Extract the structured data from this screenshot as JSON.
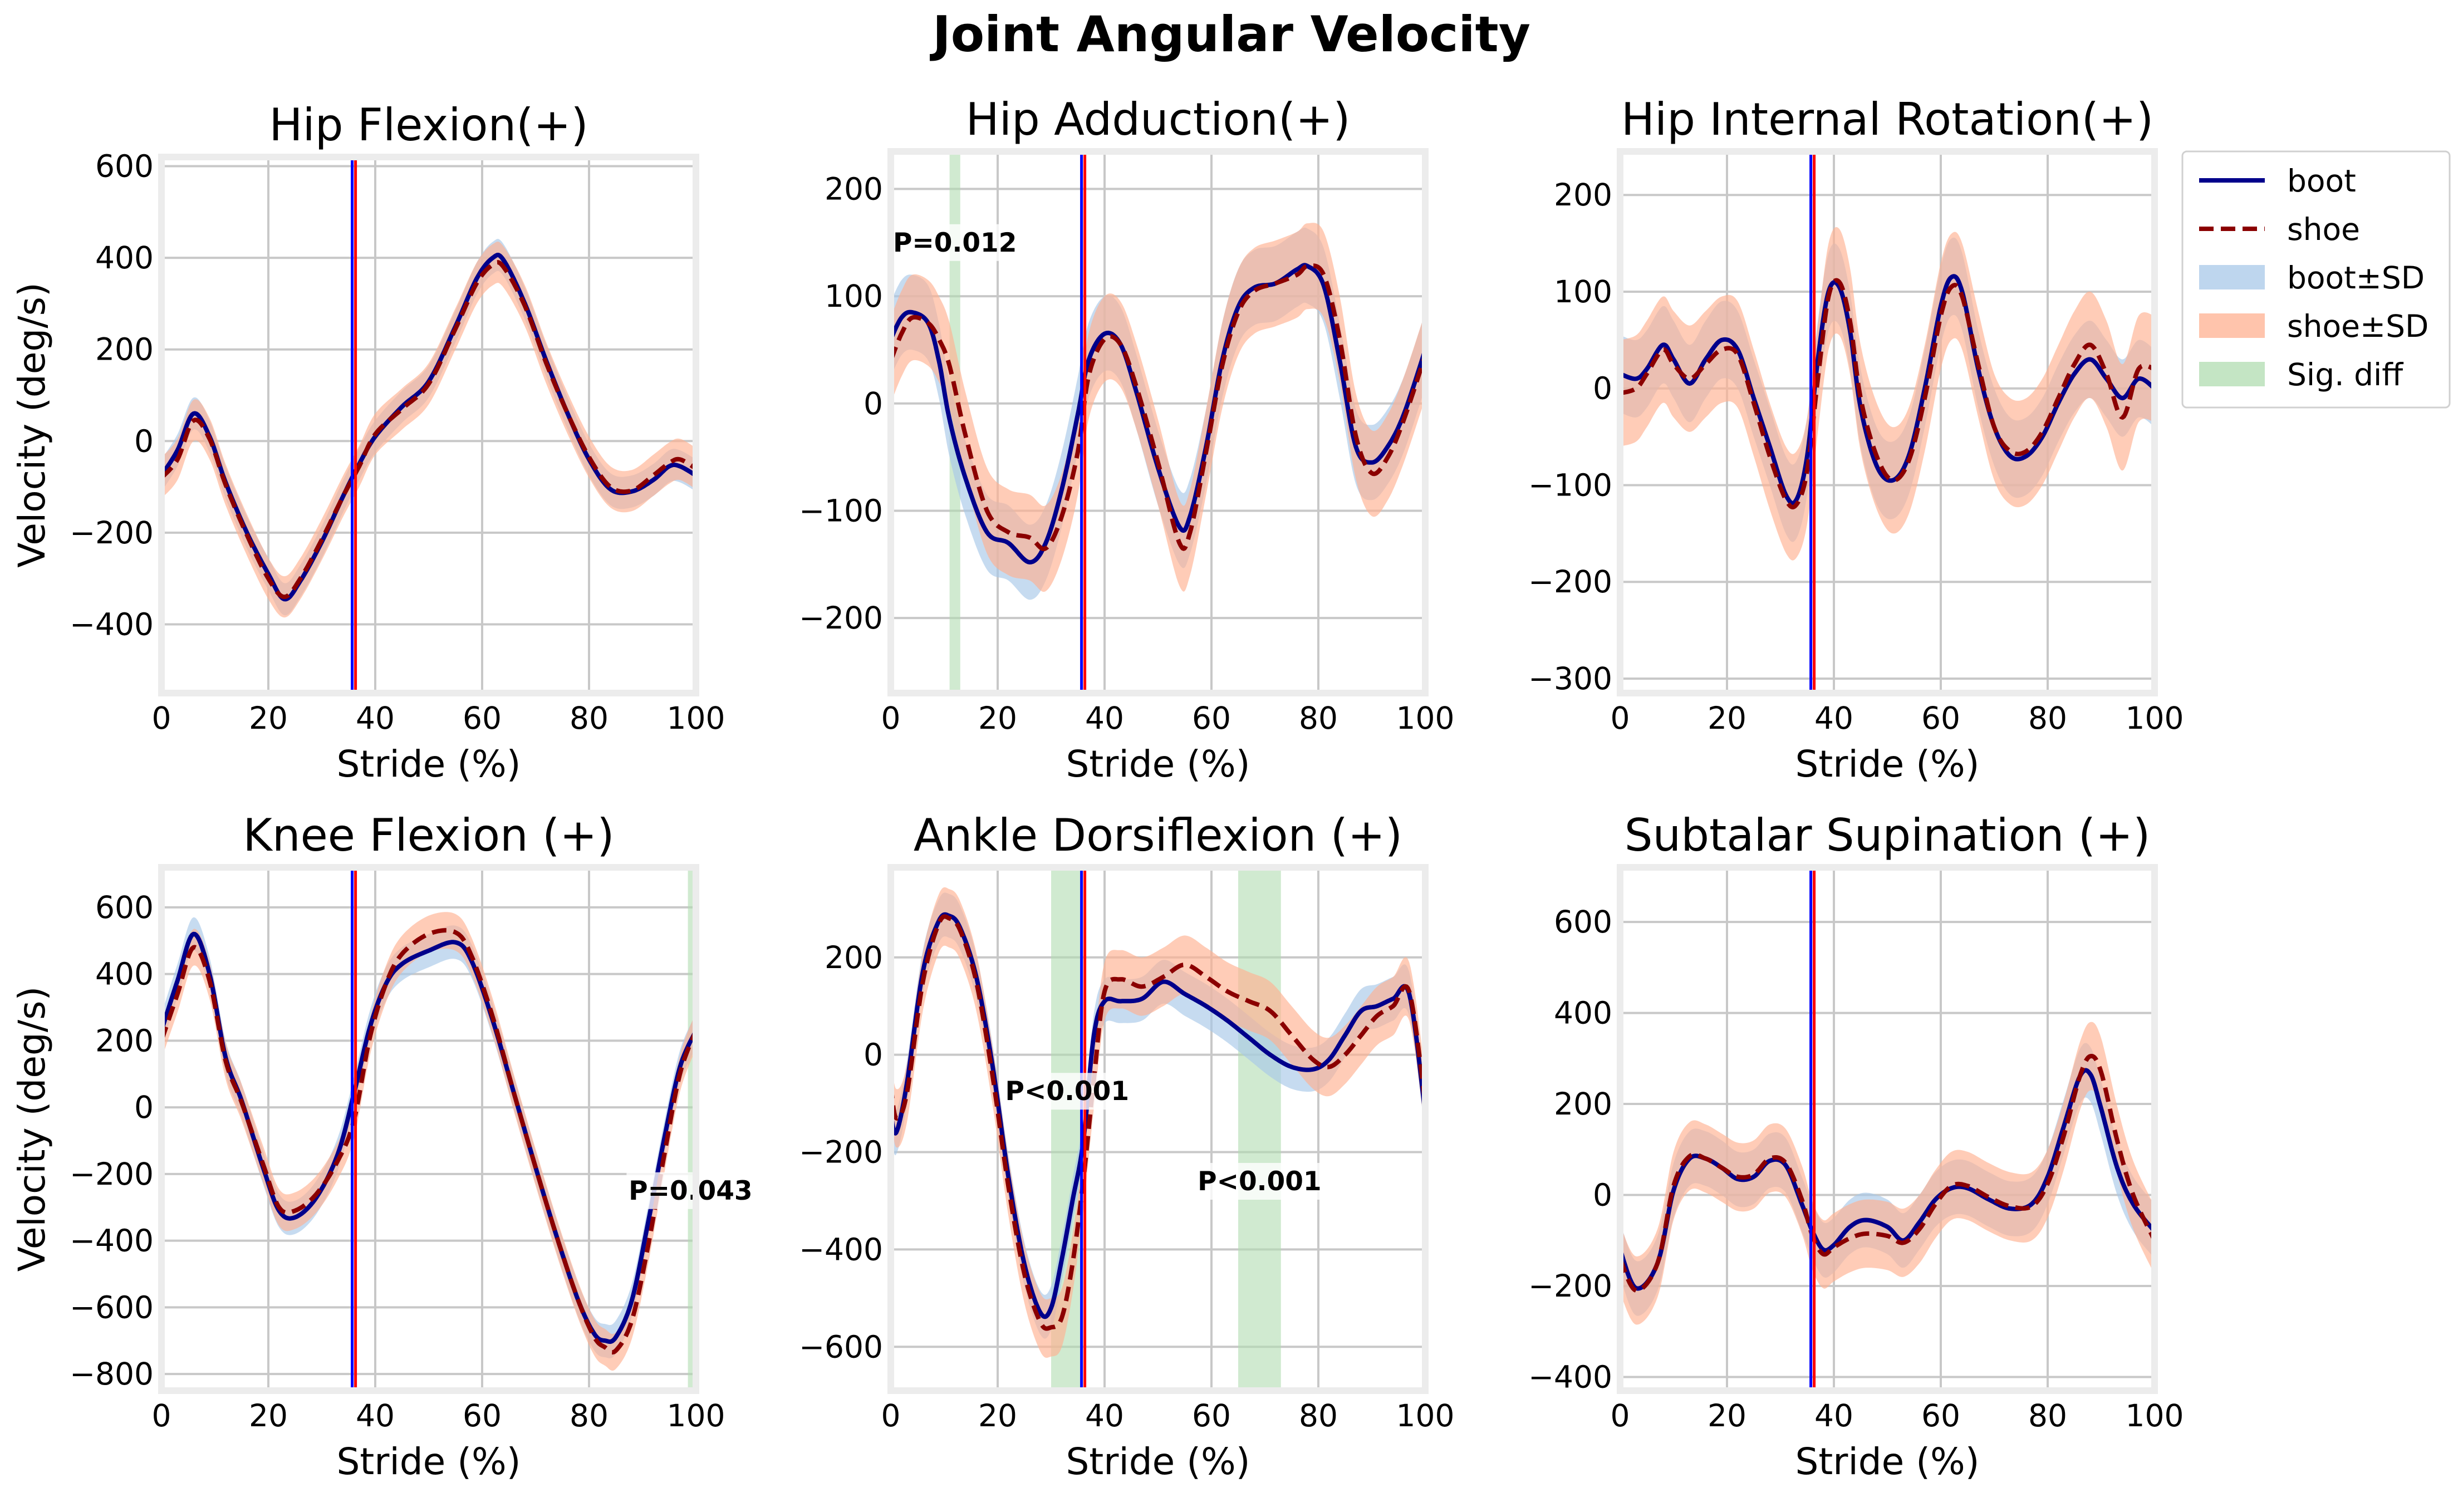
{
  "suptitle": "Joint Angular Velocity",
  "colors": {
    "boot": "#00008b",
    "shoe": "#8b0000",
    "boot_sd": "#a8c8e8",
    "shoe_sd": "#ffb090",
    "sig_diff": "#b0dcb0",
    "toe_off_a": "#0000ff",
    "toe_off_b": "#ff0000",
    "grid": "#c8c8c8",
    "frame": "#ececec"
  },
  "legend": {
    "position": "outside-right",
    "items": [
      {
        "key": "boot",
        "label": "boot",
        "kind": "line-solid"
      },
      {
        "key": "shoe",
        "label": "shoe",
        "kind": "line-dashed"
      },
      {
        "key": "boot_sd",
        "label": "boot±SD",
        "kind": "patch"
      },
      {
        "key": "shoe_sd",
        "label": "shoe±SD",
        "kind": "patch"
      },
      {
        "key": "sig_diff",
        "label": "Sig. diff",
        "kind": "patch"
      }
    ]
  },
  "chart_data": [
    {
      "type": "line",
      "title": "Hip Flexion(+)",
      "xlabel": "Stride (%)",
      "ylabel": "Velocity (deg/s)",
      "xlim": [
        0,
        100
      ],
      "ylim": [
        -550,
        620
      ],
      "xticks": [
        0,
        20,
        40,
        60,
        80,
        100
      ],
      "yticks": [
        -400,
        -200,
        0,
        200,
        400,
        600
      ],
      "grid": true,
      "toe_off": 36,
      "sig_regions": [],
      "annotations": [],
      "series": [
        {
          "name": "boot",
          "x": [
            0,
            3,
            6,
            9,
            12,
            16,
            20,
            23,
            26,
            30,
            34,
            37,
            40,
            45,
            50,
            55,
            59,
            62,
            64,
            68,
            72,
            76,
            80,
            84,
            88,
            92,
            95,
            97,
            100
          ],
          "y": [
            -75,
            -20,
            60,
            10,
            -90,
            -200,
            -290,
            -345,
            -305,
            -220,
            -120,
            -50,
            10,
            75,
            130,
            250,
            355,
            400,
            395,
            300,
            175,
            60,
            -40,
            -105,
            -110,
            -85,
            -55,
            -55,
            -75
          ],
          "sd": 35
        },
        {
          "name": "shoe",
          "x": [
            0,
            3,
            6,
            9,
            12,
            16,
            20,
            23,
            26,
            30,
            34,
            37,
            40,
            45,
            50,
            55,
            59,
            62,
            64,
            68,
            72,
            76,
            80,
            84,
            88,
            92,
            95,
            97,
            100
          ],
          "y": [
            -80,
            -40,
            45,
            5,
            -95,
            -205,
            -300,
            -340,
            -300,
            -215,
            -120,
            -55,
            15,
            70,
            125,
            245,
            345,
            385,
            380,
            295,
            170,
            60,
            -35,
            -100,
            -108,
            -75,
            -48,
            -40,
            -60
          ],
          "sd": 45
        }
      ]
    },
    {
      "type": "line",
      "title": "Hip Adduction(+)",
      "xlabel": "Stride (%)",
      "ylabel": "",
      "xlim": [
        0,
        100
      ],
      "ylim": [
        -270,
        235
      ],
      "xticks": [
        0,
        20,
        40,
        60,
        80,
        100
      ],
      "yticks": [
        -200,
        -100,
        0,
        100,
        200
      ],
      "grid": true,
      "toe_off": 36,
      "sig_regions": [
        [
          11,
          13
        ]
      ],
      "annotations": [
        {
          "text": "P=0.012",
          "x": 12,
          "y": 150
        }
      ],
      "series": [
        {
          "name": "boot",
          "x": [
            0,
            2,
            4,
            7,
            9,
            11,
            14,
            18,
            22,
            26,
            29,
            32,
            35,
            37,
            40,
            43,
            46,
            50,
            54,
            56,
            59,
            62,
            65,
            68,
            72,
            76,
            78,
            81,
            84,
            87,
            90,
            93,
            96,
            100
          ],
          "y": [
            60,
            80,
            85,
            75,
            40,
            -15,
            -70,
            -120,
            -130,
            -148,
            -130,
            -80,
            -10,
            40,
            65,
            55,
            10,
            -60,
            -115,
            -105,
            -40,
            40,
            90,
            108,
            112,
            125,
            128,
            110,
            40,
            -40,
            -55,
            -40,
            -10,
            50
          ],
          "sd": 35
        },
        {
          "name": "shoe",
          "x": [
            0,
            2,
            4,
            7,
            9,
            11,
            14,
            18,
            22,
            26,
            29,
            32,
            35,
            37,
            40,
            43,
            46,
            50,
            54,
            56,
            59,
            62,
            65,
            68,
            72,
            76,
            78,
            81,
            84,
            87,
            90,
            93,
            96,
            100
          ],
          "y": [
            40,
            65,
            80,
            75,
            60,
            35,
            -30,
            -100,
            -120,
            -125,
            -135,
            -105,
            -45,
            25,
            60,
            55,
            15,
            -55,
            -130,
            -120,
            -45,
            35,
            85,
            105,
            112,
            120,
            128,
            120,
            60,
            -30,
            -65,
            -50,
            -15,
            45
          ],
          "sd": 40
        }
      ]
    },
    {
      "type": "line",
      "title": "Hip Internal Rotation(+)",
      "xlabel": "Stride (%)",
      "ylabel": "",
      "xlim": [
        0,
        100
      ],
      "ylim": [
        -315,
        245
      ],
      "xticks": [
        0,
        20,
        40,
        60,
        80,
        100
      ],
      "yticks": [
        -300,
        -200,
        -100,
        0,
        100,
        200
      ],
      "grid": true,
      "toe_off": 36,
      "sig_regions": [],
      "annotations": [],
      "series": [
        {
          "name": "boot",
          "x": [
            0,
            3,
            5,
            8,
            10,
            13,
            16,
            19,
            22,
            25,
            28,
            31,
            33,
            35,
            37,
            39,
            41,
            43,
            45,
            48,
            51,
            54,
            57,
            60,
            62,
            64,
            67,
            70,
            73,
            76,
            79,
            82,
            85,
            88,
            91,
            94,
            97,
            100
          ],
          "y": [
            15,
            10,
            20,
            45,
            30,
            5,
            30,
            50,
            40,
            -10,
            -60,
            -110,
            -115,
            -70,
            30,
            100,
            105,
            60,
            -20,
            -80,
            -95,
            -70,
            0,
            85,
            115,
            100,
            20,
            -40,
            -70,
            -70,
            -50,
            -15,
            15,
            30,
            10,
            -10,
            10,
            0
          ],
          "sd": 40
        },
        {
          "name": "shoe",
          "x": [
            0,
            3,
            5,
            8,
            10,
            13,
            16,
            19,
            22,
            25,
            28,
            31,
            33,
            35,
            37,
            39,
            41,
            43,
            45,
            48,
            51,
            54,
            57,
            60,
            62,
            64,
            67,
            70,
            73,
            76,
            79,
            82,
            85,
            88,
            91,
            94,
            97,
            100
          ],
          "y": [
            -5,
            0,
            15,
            40,
            25,
            10,
            25,
            40,
            35,
            -15,
            -70,
            -115,
            -120,
            -85,
            10,
            95,
            110,
            70,
            -10,
            -70,
            -95,
            -75,
            -10,
            75,
            105,
            95,
            25,
            -40,
            -65,
            -65,
            -45,
            -10,
            25,
            45,
            15,
            -30,
            20,
            20
          ],
          "sd": 55
        }
      ]
    },
    {
      "type": "line",
      "title": "Knee Flexion (+)",
      "xlabel": "Stride (%)",
      "ylabel": "Velocity (deg/s)",
      "xlim": [
        0,
        100
      ],
      "ylim": [
        -850,
        720
      ],
      "xticks": [
        0,
        20,
        40,
        60,
        80,
        100
      ],
      "yticks": [
        -800,
        -600,
        -400,
        -200,
        0,
        200,
        400,
        600
      ],
      "grid": true,
      "toe_off": 36,
      "sig_regions": [
        [
          98.5,
          100
        ]
      ],
      "annotations": [
        {
          "text": "P=0.043",
          "x": 99,
          "y": -250
        }
      ],
      "series": [
        {
          "name": "boot",
          "x": [
            0,
            3,
            6,
            9,
            12,
            15,
            19,
            22,
            25,
            29,
            33,
            36,
            39,
            42,
            45,
            50,
            55,
            58,
            62,
            66,
            70,
            74,
            78,
            81,
            83,
            85,
            88,
            91,
            94,
            97,
            100
          ],
          "y": [
            230,
            380,
            520,
            400,
            150,
            20,
            -180,
            -310,
            -330,
            -270,
            -140,
            40,
            240,
            370,
            430,
            470,
            495,
            440,
            260,
            40,
            -180,
            -390,
            -580,
            -680,
            -700,
            -690,
            -580,
            -350,
            -100,
            120,
            230
          ],
          "sd": 50
        },
        {
          "name": "shoe",
          "x": [
            0,
            3,
            6,
            9,
            12,
            15,
            19,
            22,
            25,
            29,
            33,
            36,
            39,
            42,
            45,
            50,
            55,
            58,
            62,
            66,
            70,
            74,
            78,
            81,
            83,
            85,
            88,
            91,
            94,
            97,
            100
          ],
          "y": [
            200,
            340,
            480,
            380,
            140,
            15,
            -170,
            -300,
            -310,
            -260,
            -160,
            -40,
            210,
            370,
            460,
            520,
            525,
            455,
            270,
            40,
            -180,
            -390,
            -580,
            -690,
            -720,
            -730,
            -640,
            -420,
            -150,
            100,
            230
          ],
          "sd": 55
        }
      ]
    },
    {
      "type": "line",
      "title": "Ankle Dorsiflexion (+)",
      "xlabel": "Stride (%)",
      "ylabel": "",
      "xlim": [
        0,
        100
      ],
      "ylim": [
        -690,
        385
      ],
      "xticks": [
        0,
        20,
        40,
        60,
        80,
        100
      ],
      "yticks": [
        -600,
        -400,
        -200,
        0,
        200
      ],
      "grid": true,
      "toe_off": 36,
      "sig_regions": [
        [
          30,
          35.5
        ],
        [
          65,
          73
        ]
      ],
      "annotations": [
        {
          "text": "P<0.001",
          "x": 33,
          "y": -75
        },
        {
          "text": "P<0.001",
          "x": 69,
          "y": -260
        }
      ],
      "series": [
        {
          "name": "boot",
          "x": [
            0,
            1,
            3,
            6,
            9,
            11,
            13,
            16,
            19,
            22,
            25,
            28,
            30,
            32,
            34,
            36,
            38,
            40,
            43,
            47,
            51,
            55,
            59,
            63,
            67,
            71,
            75,
            79,
            82,
            85,
            88,
            91,
            94,
            97,
            100
          ],
          "y": [
            -120,
            -160,
            -60,
            170,
            275,
            285,
            260,
            160,
            -20,
            -250,
            -430,
            -530,
            -520,
            -420,
            -300,
            -180,
            40,
            110,
            110,
            115,
            150,
            125,
            100,
            70,
            35,
            0,
            -25,
            -30,
            -10,
            40,
            90,
            100,
            115,
            125,
            -120
          ],
          "sd": 45
        },
        {
          "name": "shoe",
          "x": [
            0,
            1,
            3,
            6,
            9,
            11,
            13,
            16,
            19,
            22,
            25,
            28,
            30,
            32,
            34,
            36,
            38,
            40,
            43,
            47,
            51,
            55,
            59,
            63,
            67,
            71,
            75,
            79,
            82,
            85,
            88,
            91,
            94,
            97,
            100
          ],
          "y": [
            -60,
            -130,
            -80,
            150,
            270,
            280,
            255,
            150,
            -40,
            -270,
            -450,
            -550,
            -560,
            -540,
            -430,
            -260,
            -50,
            130,
            155,
            140,
            160,
            185,
            160,
            130,
            110,
            90,
            40,
            -10,
            -25,
            0,
            40,
            80,
            100,
            130,
            -100
          ],
          "sd": 60
        }
      ]
    },
    {
      "type": "line",
      "title": "Subtalar Supination (+)",
      "xlabel": "Stride (%)",
      "ylabel": "",
      "xlim": [
        0,
        100
      ],
      "ylim": [
        -430,
        720
      ],
      "xticks": [
        0,
        20,
        40,
        60,
        80,
        100
      ],
      "yticks": [
        -400,
        -200,
        0,
        200,
        400,
        600
      ],
      "grid": true,
      "toe_off": 36,
      "sig_regions": [],
      "annotations": [],
      "series": [
        {
          "name": "boot",
          "x": [
            0,
            3,
            7,
            10,
            13,
            16,
            19,
            22,
            25,
            28,
            31,
            34,
            36,
            38,
            40,
            43,
            46,
            50,
            53,
            56,
            59,
            62,
            65,
            69,
            73,
            77,
            80,
            83,
            86,
            88,
            90,
            93,
            96,
            100
          ],
          "y": [
            -120,
            -205,
            -150,
            10,
            80,
            80,
            60,
            35,
            40,
            75,
            65,
            -20,
            -80,
            -120,
            -110,
            -70,
            -55,
            -70,
            -100,
            -60,
            -10,
            15,
            15,
            -10,
            -30,
            -20,
            40,
            150,
            260,
            265,
            190,
            60,
            -20,
            -80
          ],
          "sd": 60
        },
        {
          "name": "shoe",
          "x": [
            0,
            3,
            7,
            10,
            13,
            16,
            19,
            22,
            25,
            28,
            31,
            34,
            36,
            38,
            40,
            43,
            46,
            50,
            53,
            56,
            59,
            62,
            65,
            69,
            73,
            77,
            80,
            83,
            86,
            88,
            90,
            93,
            96,
            100
          ],
          "y": [
            -140,
            -210,
            -150,
            20,
            85,
            80,
            60,
            40,
            45,
            80,
            70,
            -10,
            -90,
            -130,
            -115,
            -95,
            -85,
            -90,
            -105,
            -75,
            -20,
            20,
            20,
            -5,
            -25,
            -25,
            25,
            130,
            260,
            305,
            270,
            120,
            0,
            -100
          ],
          "sd": 75
        }
      ]
    }
  ]
}
